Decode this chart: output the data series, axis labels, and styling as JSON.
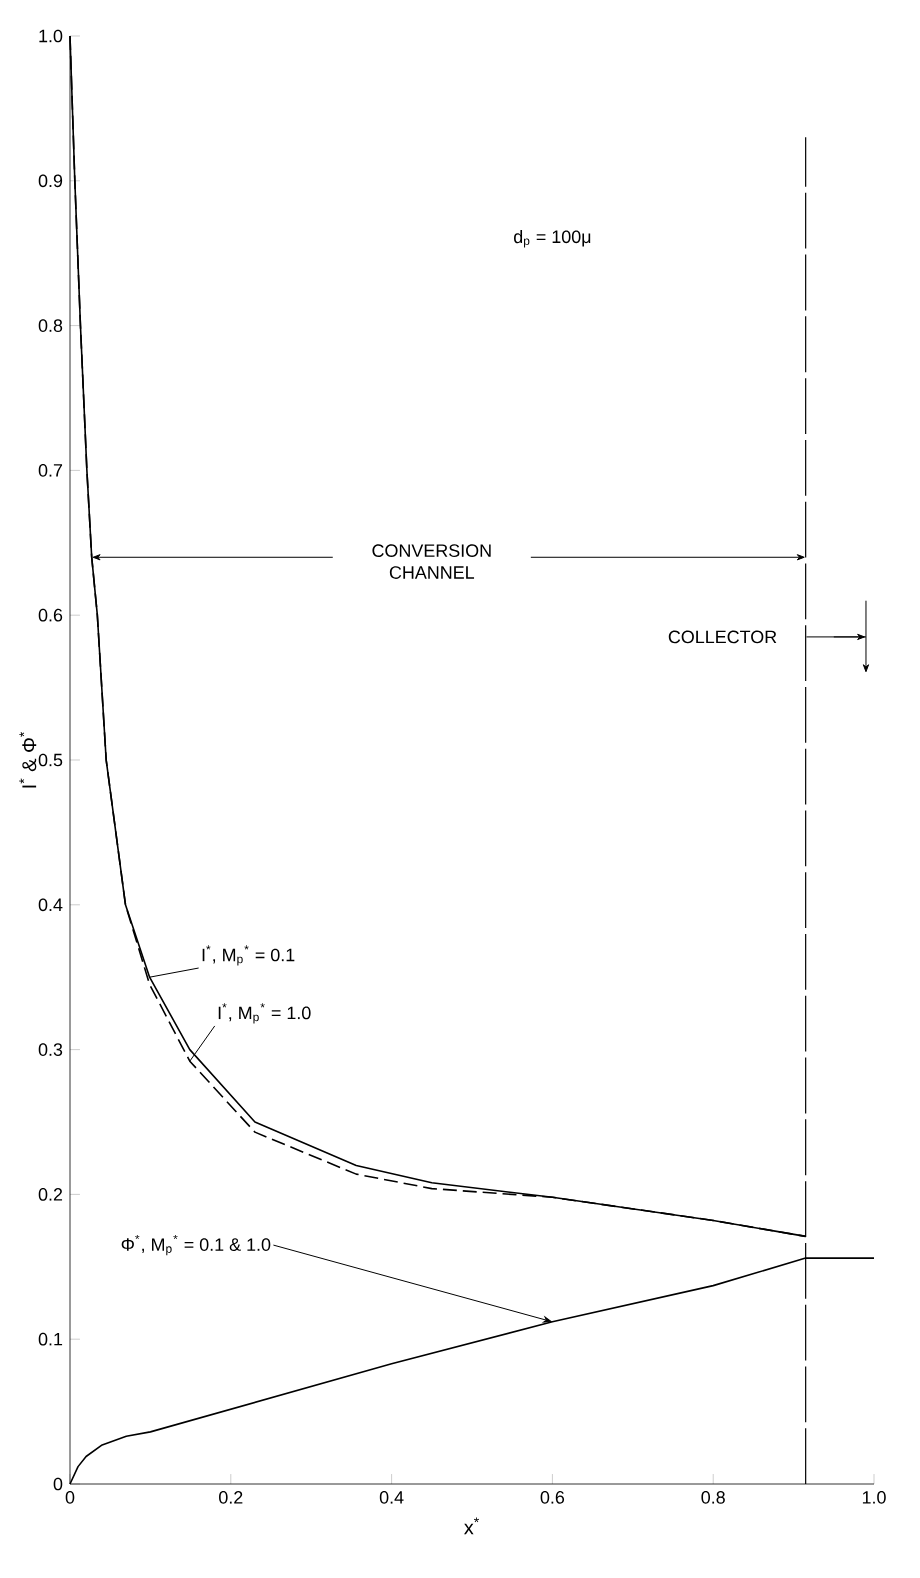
{
  "chart_data": {
    "type": "line",
    "xlabel": "x$^{*}$",
    "ylabel": "I$^{*}$ & Φ$^{*}$",
    "xlim": [
      0,
      1.0
    ],
    "ylim": [
      0,
      1.0
    ],
    "xticks": [
      0,
      0.2,
      0.4,
      0.6,
      0.8,
      {
        "value": 1.0,
        "label": "1.0"
      }
    ],
    "yticks": [
      0,
      0.1,
      0.2,
      0.3,
      0.4,
      0.5,
      0.6,
      0.7,
      0.8,
      0.9,
      {
        "value": 1.0,
        "label": "1.0"
      }
    ],
    "grid": false,
    "legend": false,
    "marker": "none",
    "series": [
      {
        "name": "I$^{*}$,  M$_{p}$$^{*}$ = 0.1",
        "color": "#000000",
        "line_style": "solid",
        "x": [
          0,
          0.006,
          0.013,
          0.021,
          0.027,
          0.034,
          0.045,
          0.069,
          0.099,
          0.149,
          0.23,
          0.356,
          0.45,
          0.6,
          0.8,
          0.915
        ],
        "values": [
          1.0,
          0.9,
          0.8,
          0.7,
          0.64,
          0.6,
          0.5,
          0.4,
          0.35,
          0.3,
          0.25,
          0.22,
          0.208,
          0.198,
          0.182,
          0.171
        ]
      },
      {
        "name": "I$^{*}$,  M$_{p}$$^{*}$ = 1.0",
        "color": "#000000",
        "line_style": "dashed",
        "x": [
          0,
          0.006,
          0.013,
          0.021,
          0.027,
          0.034,
          0.045,
          0.069,
          0.099,
          0.149,
          0.23,
          0.356,
          0.45,
          0.6,
          0.8,
          0.915
        ],
        "values": [
          1.0,
          0.9,
          0.8,
          0.7,
          0.64,
          0.6,
          0.5,
          0.4,
          0.345,
          0.292,
          0.243,
          0.214,
          0.204,
          0.198,
          0.182,
          0.171
        ]
      },
      {
        "name": "Φ$^{*}$,  M$_{p}$$^{*}$ = 0.1 & 1.0",
        "color": "#000000",
        "line_style": "solid",
        "x": [
          0,
          0.01,
          0.02,
          0.04,
          0.07,
          0.1,
          0.4,
          0.6,
          0.8,
          0.915,
          1.0
        ],
        "values": [
          0,
          0.012,
          0.019,
          0.027,
          0.033,
          0.036,
          0.083,
          0.112,
          0.137,
          0.156,
          0.156
        ]
      }
    ],
    "ref_lines": [
      {
        "axis": "x",
        "value": 0.915,
        "label": null,
        "line_style": "dashed"
      }
    ],
    "annotations": [
      "d$_{p}$ = 100μ",
      "CONVERSION CHANNEL",
      "COLLECTOR"
    ]
  }
}
